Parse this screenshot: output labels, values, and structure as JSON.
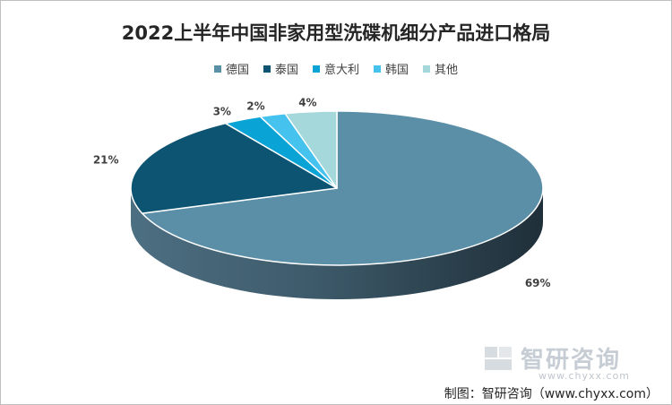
{
  "chart_data": {
    "type": "pie",
    "title": "2022上半年中国非家用型洗碟机细分产品进口格局",
    "categories": [
      "德国",
      "泰国",
      "意大利",
      "韩国",
      "其他"
    ],
    "values": [
      69,
      21,
      3,
      2,
      4
    ],
    "value_labels": [
      "69%",
      "21%",
      "3%",
      "2%",
      "4%"
    ],
    "colors": [
      "#5b8fa8",
      "#0d5473",
      "#0aa3d6",
      "#45c2ee",
      "#a4d8db"
    ],
    "legend_position": "top",
    "three_d": true
  },
  "watermark": {
    "brand": "智研咨询",
    "url": "www.chyxx.com"
  },
  "footer": {
    "credit": "制图：智研咨询（www.chyxx.com）"
  }
}
